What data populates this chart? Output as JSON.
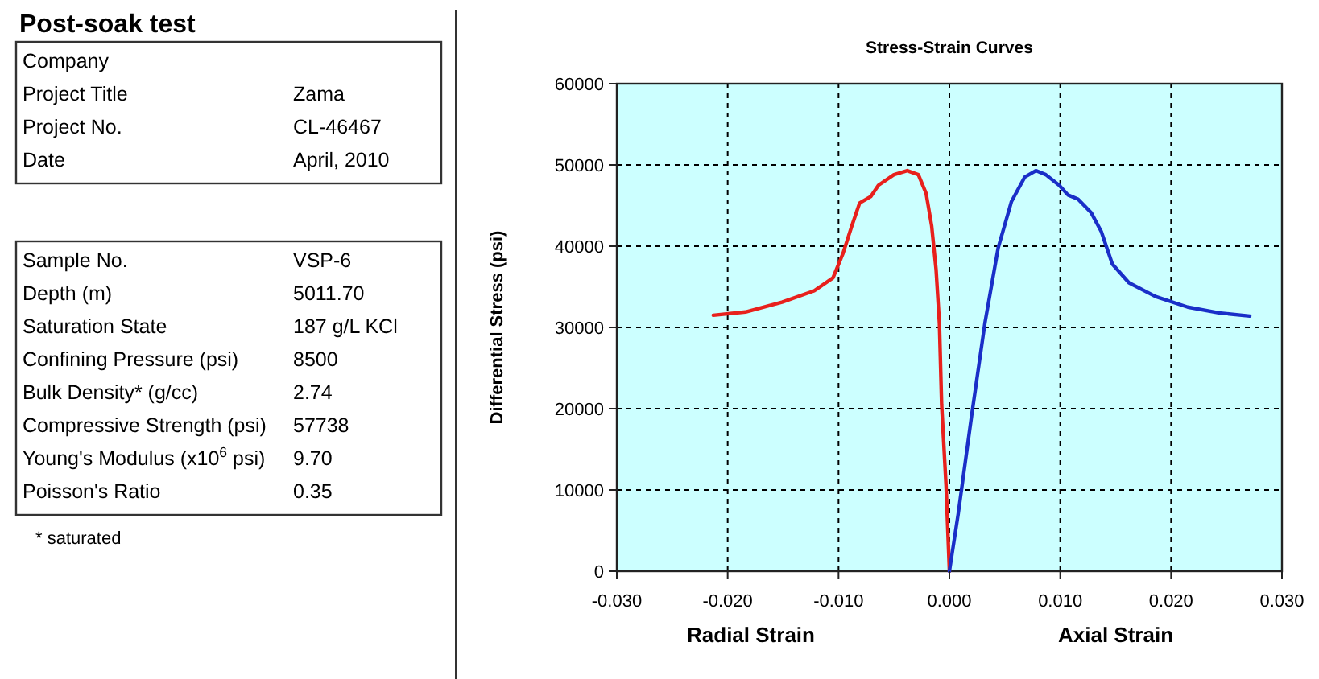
{
  "chart_data": [
    {
      "type": "other",
      "title": "Post-soak test",
      "annotations": [
        "Company",
        null,
        "Project Title",
        "Zama",
        "Project No.",
        "CL-46467",
        "Date",
        "April, 2010"
      ]
    },
    {
      "type": "other",
      "annotations": [
        "Sample No.",
        "VSP-6",
        "Depth (m)",
        "5011.70",
        "Saturation State",
        "187 g/L KCl",
        "Confining Pressure (psi)",
        "8500",
        "Bulk Density* (g/cc)",
        "2.74",
        "Compressive Strength (psi)",
        "57738",
        "Young's Modulus (x10$^{6}$ psi)",
        "9.70",
        "Poisson's Ratio",
        "0.35",
        "* saturated"
      ]
    },
    {
      "type": "line",
      "title": "Stress-Strain Curves",
      "ylabel": "Differential Stress (psi)",
      "annotations": [
        "Radial Strain",
        "Axial Strain"
      ],
      "grid": true,
      "line_style": "solid",
      "marker": "none",
      "xlim": [
        -0.03,
        0.03
      ],
      "xticks": [
        {
          "value": -0.03,
          "label": "-0.030"
        },
        {
          "value": -0.02,
          "label": "-0.020"
        },
        {
          "value": -0.01,
          "label": "-0.010"
        },
        {
          "value": 0,
          "label": "0.000"
        },
        {
          "value": 0.01,
          "label": "0.010"
        },
        {
          "value": 0.02,
          "label": "0.020"
        },
        {
          "value": 0.03,
          "label": "0.030"
        }
      ],
      "ylim": [
        0,
        60000
      ],
      "yticks": [
        0,
        10000,
        20000,
        30000,
        40000,
        50000,
        60000
      ],
      "series": [
        {
          "color": "#e8201c",
          "x": [
            -0.0213,
            -0.0184,
            -0.0151,
            -0.0122,
            -0.0105,
            -0.0096,
            -0.0088,
            -0.0081,
            -0.0071,
            -0.0064,
            -0.005,
            -0.0038,
            -0.0028,
            -0.0021,
            -0.0016,
            -0.0012,
            -0.0009,
            -0.0007,
            -0.0003,
            0
          ],
          "values": [
            31500,
            31900,
            33100,
            34500,
            36100,
            39100,
            42500,
            45300,
            46100,
            47500,
            48800,
            49300,
            48800,
            46500,
            42500,
            37100,
            30500,
            20500,
            10500,
            0
          ]
        },
        {
          "color": "#1a2fc8",
          "x": [
            0,
            0.0008,
            0.002,
            0.0032,
            0.0044,
            0.0056,
            0.0068,
            0.0078,
            0.0087,
            0.0099,
            0.0107,
            0.0116,
            0.0128,
            0.0137,
            0.0147,
            0.0162,
            0.0186,
            0.0215,
            0.0243,
            0.0271
          ],
          "values": [
            0,
            7100,
            19100,
            30500,
            39800,
            45500,
            48500,
            49300,
            48800,
            47500,
            46300,
            45800,
            44100,
            41800,
            37800,
            35500,
            33800,
            32500,
            31800,
            31400
          ]
        }
      ]
    }
  ]
}
